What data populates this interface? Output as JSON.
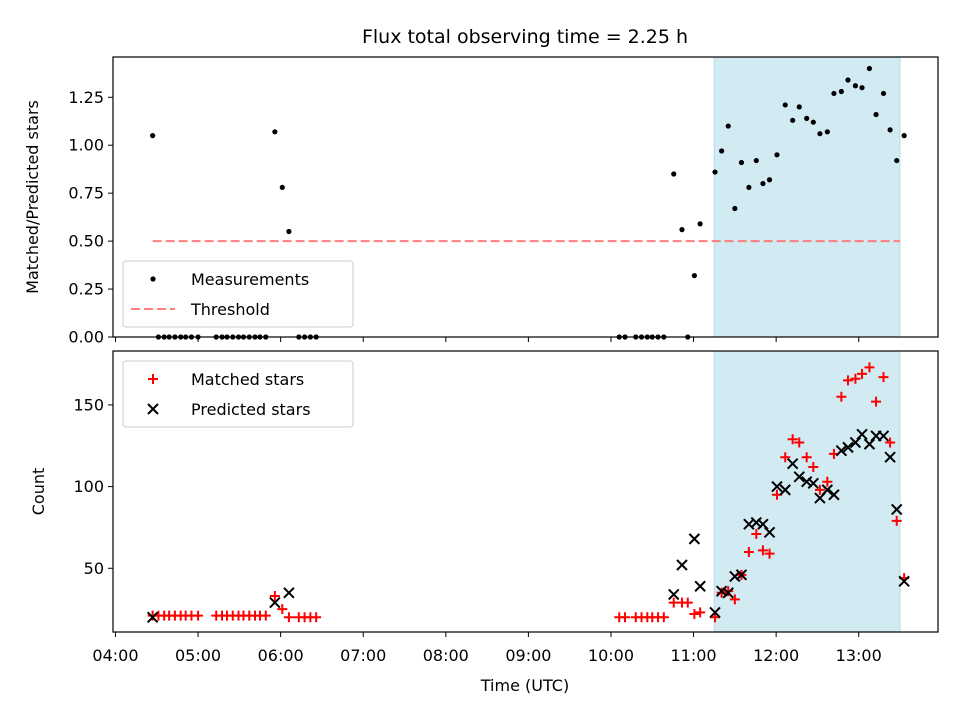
{
  "chart_data": {
    "title": "Flux total observing time = 2.25 h",
    "xlabel": "Time (UTC)",
    "x_unit": "hours UTC",
    "xlim": [
      3.97,
      13.96
    ],
    "x_ticks": [
      4,
      5,
      6,
      7,
      8,
      9,
      10,
      11,
      12,
      13
    ],
    "x_tick_labels": [
      "04:00",
      "05:00",
      "06:00",
      "07:00",
      "08:00",
      "09:00",
      "10:00",
      "11:00",
      "12:00",
      "13:00"
    ],
    "shaded_span": {
      "x0": 11.25,
      "x1": 13.5,
      "color": "#add8e6"
    },
    "panels": [
      {
        "type": "scatter",
        "ylabel": "Matched/Predicted stars",
        "ylim": [
          0.0,
          1.46
        ],
        "y_ticks": [
          0.0,
          0.25,
          0.5,
          0.75,
          1.0,
          1.25
        ],
        "y_tick_labels": [
          "0.00",
          "0.25",
          "0.50",
          "0.75",
          "1.00",
          "1.25"
        ],
        "legend": {
          "location": "lower-left",
          "entries": [
            "Measurements",
            "Threshold"
          ]
        },
        "series": [
          {
            "name": "Measurements",
            "marker": "dot",
            "color": "#000000",
            "points": [
              [
                4.45,
                1.05
              ],
              [
                4.52,
                0.0
              ],
              [
                4.59,
                0.0
              ],
              [
                4.65,
                0.0
              ],
              [
                4.72,
                0.0
              ],
              [
                4.79,
                0.0
              ],
              [
                4.85,
                0.0
              ],
              [
                4.92,
                0.0
              ],
              [
                5.0,
                0.0
              ],
              [
                5.22,
                0.0
              ],
              [
                5.29,
                0.0
              ],
              [
                5.35,
                0.0
              ],
              [
                5.42,
                0.0
              ],
              [
                5.49,
                0.0
              ],
              [
                5.55,
                0.0
              ],
              [
                5.62,
                0.0
              ],
              [
                5.69,
                0.0
              ],
              [
                5.75,
                0.0
              ],
              [
                5.82,
                0.0
              ],
              [
                5.93,
                1.07
              ],
              [
                6.02,
                0.78
              ],
              [
                6.1,
                0.55
              ],
              [
                6.22,
                0.0
              ],
              [
                6.29,
                0.0
              ],
              [
                6.36,
                0.0
              ],
              [
                6.43,
                0.0
              ],
              [
                10.1,
                0.0
              ],
              [
                10.17,
                0.0
              ],
              [
                10.3,
                0.0
              ],
              [
                10.37,
                0.0
              ],
              [
                10.44,
                0.0
              ],
              [
                10.5,
                0.0
              ],
              [
                10.57,
                0.0
              ],
              [
                10.64,
                0.0
              ],
              [
                10.76,
                0.85
              ],
              [
                10.86,
                0.56
              ],
              [
                10.93,
                0.0
              ],
              [
                11.01,
                0.32
              ],
              [
                11.08,
                0.59
              ],
              [
                11.26,
                0.86
              ],
              [
                11.34,
                0.97
              ],
              [
                11.42,
                1.1
              ],
              [
                11.5,
                0.67
              ],
              [
                11.58,
                0.91
              ],
              [
                11.67,
                0.78
              ],
              [
                11.76,
                0.92
              ],
              [
                11.84,
                0.8
              ],
              [
                11.92,
                0.82
              ],
              [
                12.01,
                0.95
              ],
              [
                12.11,
                1.21
              ],
              [
                12.2,
                1.13
              ],
              [
                12.28,
                1.2
              ],
              [
                12.37,
                1.14
              ],
              [
                12.45,
                1.12
              ],
              [
                12.53,
                1.06
              ],
              [
                12.62,
                1.07
              ],
              [
                12.7,
                1.27
              ],
              [
                12.79,
                1.28
              ],
              [
                12.87,
                1.34
              ],
              [
                12.96,
                1.31
              ],
              [
                13.04,
                1.3
              ],
              [
                13.13,
                1.4
              ],
              [
                13.21,
                1.16
              ],
              [
                13.3,
                1.27
              ],
              [
                13.38,
                1.08
              ],
              [
                13.46,
                0.92
              ],
              [
                13.55,
                1.05
              ]
            ]
          },
          {
            "name": "Threshold",
            "marker": "dashed-line",
            "color": "#ff7f7f",
            "x": [
              4.45,
              13.5
            ],
            "y": [
              0.5,
              0.5
            ]
          }
        ]
      },
      {
        "type": "scatter",
        "ylabel": "Count",
        "ylim": [
          11,
          183
        ],
        "y_ticks": [
          50,
          100,
          150
        ],
        "y_tick_labels": [
          "50",
          "100",
          "150"
        ],
        "legend": {
          "location": "upper-left",
          "entries": [
            "Matched stars",
            "Predicted stars"
          ]
        },
        "series": [
          {
            "name": "Matched stars",
            "marker": "plus",
            "color": "#ff0000",
            "points": [
              [
                4.45,
                21
              ],
              [
                4.52,
                21
              ],
              [
                4.59,
                21
              ],
              [
                4.65,
                21
              ],
              [
                4.72,
                21
              ],
              [
                4.79,
                21
              ],
              [
                4.85,
                21
              ],
              [
                4.92,
                21
              ],
              [
                5.0,
                21
              ],
              [
                5.22,
                21
              ],
              [
                5.29,
                21
              ],
              [
                5.35,
                21
              ],
              [
                5.42,
                21
              ],
              [
                5.49,
                21
              ],
              [
                5.55,
                21
              ],
              [
                5.62,
                21
              ],
              [
                5.69,
                21
              ],
              [
                5.75,
                21
              ],
              [
                5.82,
                21
              ],
              [
                5.93,
                33
              ],
              [
                6.02,
                25
              ],
              [
                6.1,
                20
              ],
              [
                6.22,
                20
              ],
              [
                6.29,
                20
              ],
              [
                6.36,
                20
              ],
              [
                6.43,
                20
              ],
              [
                10.1,
                20
              ],
              [
                10.17,
                20
              ],
              [
                10.3,
                20
              ],
              [
                10.37,
                20
              ],
              [
                10.44,
                20
              ],
              [
                10.5,
                20
              ],
              [
                10.57,
                20
              ],
              [
                10.64,
                20
              ],
              [
                10.76,
                29
              ],
              [
                10.86,
                29
              ],
              [
                10.93,
                29
              ],
              [
                11.01,
                22
              ],
              [
                11.08,
                23
              ],
              [
                11.26,
                20
              ],
              [
                11.34,
                35
              ],
              [
                11.42,
                36
              ],
              [
                11.5,
                31
              ],
              [
                11.58,
                46
              ],
              [
                11.67,
                60
              ],
              [
                11.76,
                71
              ],
              [
                11.84,
                61
              ],
              [
                11.92,
                59
              ],
              [
                12.01,
                95
              ],
              [
                12.11,
                118
              ],
              [
                12.2,
                129
              ],
              [
                12.28,
                127
              ],
              [
                12.37,
                118
              ],
              [
                12.45,
                112
              ],
              [
                12.53,
                98
              ],
              [
                12.62,
                103
              ],
              [
                12.7,
                120
              ],
              [
                12.79,
                155
              ],
              [
                12.87,
                165
              ],
              [
                12.96,
                166
              ],
              [
                13.04,
                169
              ],
              [
                13.13,
                173
              ],
              [
                13.21,
                152
              ],
              [
                13.3,
                167
              ],
              [
                13.38,
                127
              ],
              [
                13.46,
                79
              ],
              [
                13.55,
                44
              ]
            ]
          },
          {
            "name": "Predicted stars",
            "marker": "x",
            "color": "#000000",
            "points": [
              [
                4.45,
                20
              ],
              [
                5.93,
                29
              ],
              [
                6.1,
                35
              ],
              [
                10.76,
                34
              ],
              [
                10.86,
                52
              ],
              [
                11.01,
                68
              ],
              [
                11.08,
                39
              ],
              [
                11.26,
                23
              ],
              [
                11.34,
                36
              ],
              [
                11.42,
                35
              ],
              [
                11.5,
                45
              ],
              [
                11.58,
                46
              ],
              [
                11.67,
                77
              ],
              [
                11.76,
                78
              ],
              [
                11.84,
                77
              ],
              [
                11.92,
                72
              ],
              [
                12.01,
                100
              ],
              [
                12.11,
                98
              ],
              [
                12.2,
                114
              ],
              [
                12.28,
                106
              ],
              [
                12.37,
                103
              ],
              [
                12.45,
                102
              ],
              [
                12.53,
                93
              ],
              [
                12.62,
                98
              ],
              [
                12.7,
                95
              ],
              [
                12.79,
                122
              ],
              [
                12.87,
                124
              ],
              [
                12.96,
                127
              ],
              [
                13.04,
                132
              ],
              [
                13.13,
                126
              ],
              [
                13.21,
                131
              ],
              [
                13.3,
                131
              ],
              [
                13.38,
                118
              ],
              [
                13.46,
                86
              ],
              [
                13.55,
                42
              ]
            ]
          }
        ]
      }
    ]
  }
}
